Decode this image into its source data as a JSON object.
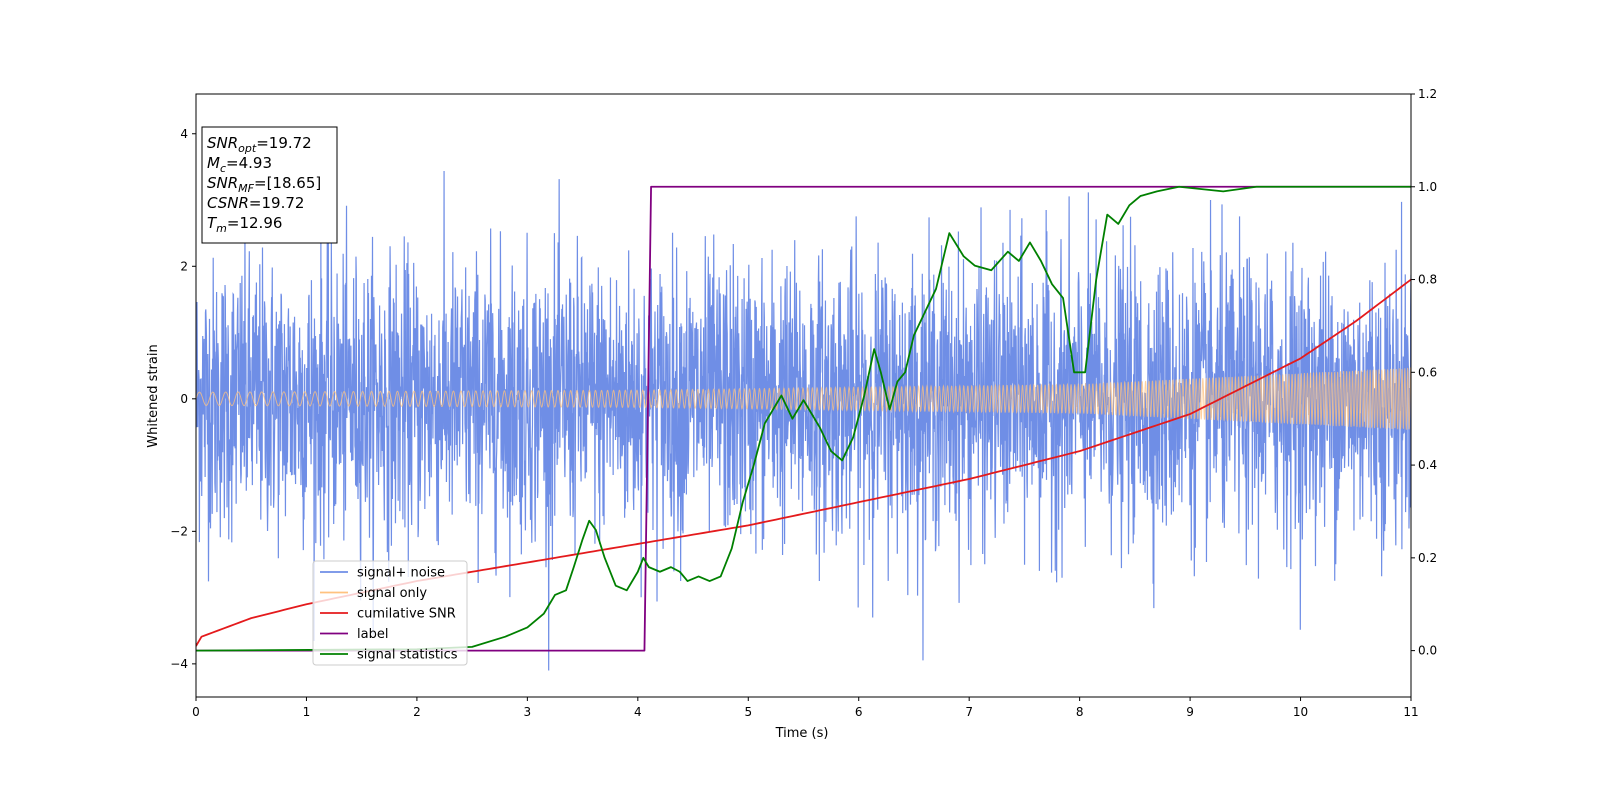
{
  "chart_data": {
    "type": "line",
    "xlabel": "Time (s)",
    "ylabel": "Whitened strain",
    "xlim": [
      0,
      11
    ],
    "ylim_left": [
      -4.5,
      4.6
    ],
    "ylim_right": [
      -0.1,
      1.2
    ],
    "x_ticks": [
      "0",
      "1",
      "2",
      "3",
      "4",
      "5",
      "6",
      "7",
      "8",
      "9",
      "10",
      "11"
    ],
    "y_left_ticks": [
      "−4",
      "−2",
      "0",
      "2",
      "4"
    ],
    "y_right_ticks": [
      "0.0",
      "0.2",
      "0.4",
      "0.6",
      "0.8",
      "1.0",
      "1.2"
    ],
    "grid": false,
    "legend_position": "lower-left",
    "annotation": [
      {
        "label": "SNR",
        "sub": "opt",
        "value": "=19.72"
      },
      {
        "label": "M",
        "sub": "c",
        "value": "=4.93"
      },
      {
        "label": "SNR",
        "sub": "MF",
        "value": "=[18.65]"
      },
      {
        "label": "CSNR",
        "sub": "",
        "value": "=19.72"
      },
      {
        "label": "T",
        "sub": "m",
        "value": "=12.96"
      }
    ],
    "series": [
      {
        "name": "signal+ noise",
        "axis": "left",
        "color": "#6f8ee6",
        "description": "whitened noise, approx ±1.2 sigma band with peaks near ±3",
        "amplitude_std": 1.0
      },
      {
        "name": "signal only",
        "axis": "left",
        "color": "#ffc27f",
        "description": "chirp with amplitude growing over time",
        "amplitude": {
          "x": [
            0,
            4,
            8,
            11
          ],
          "y": [
            0.1,
            0.13,
            0.22,
            0.47
          ]
        }
      },
      {
        "name": "cumilative SNR",
        "axis": "right",
        "color": "#e41a1c",
        "x": [
          0,
          0.05,
          0.5,
          1,
          2,
          3,
          4,
          5,
          6,
          7,
          8,
          9,
          10,
          10.5,
          11
        ],
        "y": [
          0.01,
          0.03,
          0.07,
          0.1,
          0.15,
          0.19,
          0.23,
          0.27,
          0.32,
          0.37,
          0.43,
          0.51,
          0.63,
          0.71,
          0.8
        ]
      },
      {
        "name": "label",
        "axis": "right",
        "color": "#800080",
        "x": [
          0,
          4.06,
          4.12,
          11
        ],
        "y": [
          0,
          0,
          1,
          1
        ]
      },
      {
        "name": "signal statistics",
        "axis": "right",
        "color": "#008000",
        "x": [
          0,
          2.0,
          2.5,
          2.8,
          3.0,
          3.15,
          3.25,
          3.35,
          3.42,
          3.5,
          3.56,
          3.62,
          3.7,
          3.8,
          3.9,
          4.0,
          4.05,
          4.1,
          4.2,
          4.3,
          4.38,
          4.45,
          4.55,
          4.65,
          4.75,
          4.85,
          4.95,
          5.05,
          5.15,
          5.3,
          5.4,
          5.5,
          5.65,
          5.75,
          5.85,
          5.95,
          6.05,
          6.14,
          6.2,
          6.28,
          6.35,
          6.42,
          6.5,
          6.58,
          6.7,
          6.82,
          6.95,
          7.05,
          7.2,
          7.35,
          7.45,
          7.55,
          7.65,
          7.75,
          7.85,
          7.95,
          8.05,
          8.15,
          8.25,
          8.35,
          8.45,
          8.55,
          8.7,
          8.9,
          9.3,
          9.6,
          10.0,
          10.5,
          11.0
        ],
        "y": [
          0,
          0.003,
          0.008,
          0.03,
          0.05,
          0.08,
          0.12,
          0.13,
          0.18,
          0.24,
          0.28,
          0.26,
          0.2,
          0.14,
          0.13,
          0.17,
          0.2,
          0.18,
          0.17,
          0.18,
          0.17,
          0.15,
          0.16,
          0.15,
          0.16,
          0.22,
          0.32,
          0.4,
          0.49,
          0.55,
          0.5,
          0.54,
          0.48,
          0.43,
          0.41,
          0.46,
          0.55,
          0.65,
          0.6,
          0.52,
          0.58,
          0.6,
          0.68,
          0.72,
          0.78,
          0.9,
          0.85,
          0.83,
          0.82,
          0.86,
          0.84,
          0.88,
          0.84,
          0.79,
          0.76,
          0.6,
          0.6,
          0.8,
          0.94,
          0.92,
          0.96,
          0.98,
          0.99,
          1.0,
          0.99,
          1.0,
          1.0,
          1.0,
          1.0
        ]
      }
    ]
  }
}
